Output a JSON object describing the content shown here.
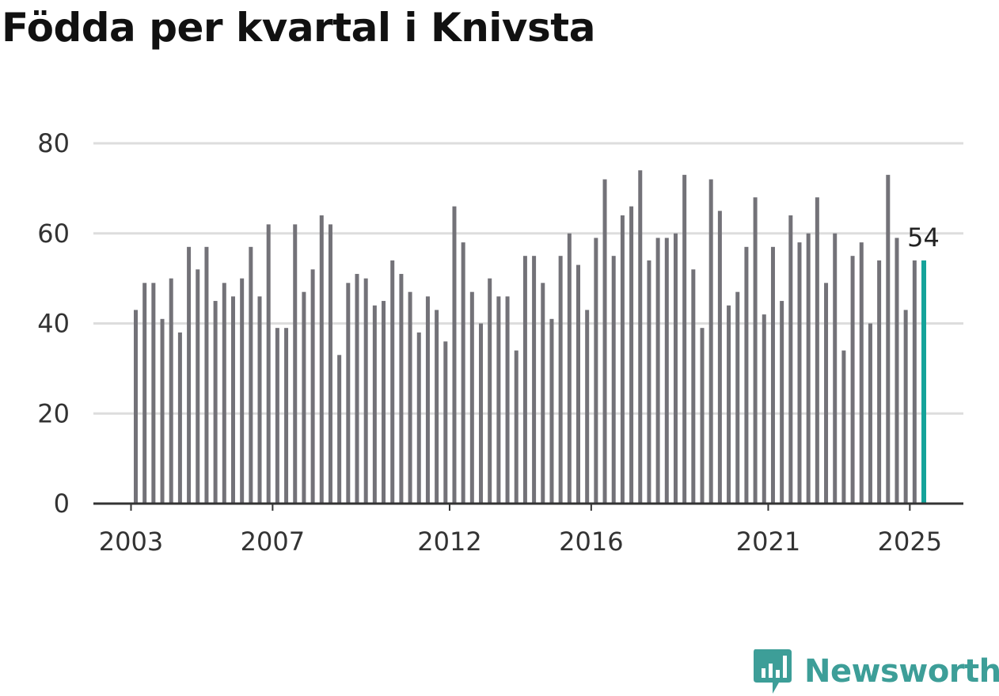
{
  "title": "Födda per kvartal i Knivsta",
  "brand": {
    "name": "Newsworthy",
    "color": "#3d9e98"
  },
  "colors": {
    "bar": "#737278",
    "highlight": "#14a39a",
    "grid": "#dddddd",
    "axis": "#333333"
  },
  "chart_data": {
    "type": "bar",
    "title": "Födda per kvartal i Knivsta",
    "ylim": [
      0,
      80
    ],
    "yticks": [
      "0",
      "20",
      "40",
      "60",
      "80"
    ],
    "xticks": [
      {
        "label": "2003",
        "year": 2003
      },
      {
        "label": "2007",
        "year": 2007
      },
      {
        "label": "2012",
        "year": 2012
      },
      {
        "label": "2016",
        "year": 2016
      },
      {
        "label": "2021",
        "year": 2021
      },
      {
        "label": "2025",
        "year": 2025
      }
    ],
    "grid": true,
    "start": "2003 Q1",
    "values": [
      43,
      49,
      49,
      41,
      50,
      38,
      57,
      52,
      57,
      45,
      49,
      46,
      50,
      57,
      46,
      62,
      39,
      39,
      62,
      47,
      52,
      64,
      62,
      33,
      49,
      51,
      50,
      44,
      45,
      54,
      51,
      47,
      38,
      46,
      43,
      36,
      66,
      58,
      47,
      40,
      50,
      46,
      46,
      34,
      55,
      55,
      49,
      41,
      55,
      60,
      53,
      43,
      59,
      72,
      55,
      64,
      66,
      74,
      54,
      59,
      59,
      60,
      73,
      52,
      39,
      72,
      65,
      44,
      47,
      57,
      68,
      42,
      57,
      45,
      64,
      58,
      60,
      68,
      49,
      60,
      34,
      55,
      58,
      40,
      54,
      73,
      59,
      43,
      54,
      54
    ],
    "highlight_label": "54"
  }
}
